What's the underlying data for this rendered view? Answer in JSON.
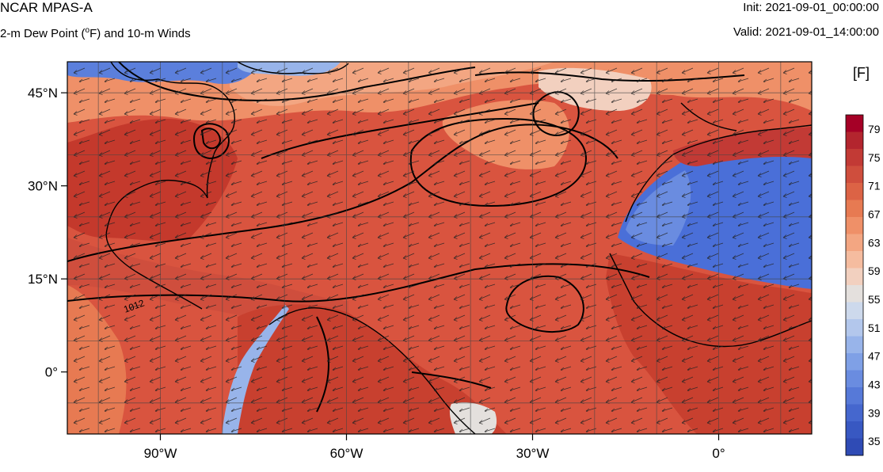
{
  "header": {
    "model": "NCAR MPAS-A",
    "field_prefix": "2-m Dew Point (",
    "field_unit_sup": "o",
    "field_suffix": "F) and 10-m Winds",
    "init": "Init: 2021-09-01_00:00:00",
    "valid": "Valid: 2021-09-01_14:00:00"
  },
  "map": {
    "projection": "cylindrical equidistant",
    "lon_range": [
      -105,
      15
    ],
    "lat_range": [
      -10,
      50
    ],
    "lon_ticks": [
      {
        "value": -90,
        "label": "90°W"
      },
      {
        "value": -60,
        "label": "60°W"
      },
      {
        "value": -30,
        "label": "30°W"
      },
      {
        "value": 0,
        "label": "0°"
      }
    ],
    "lat_ticks": [
      {
        "value": 45,
        "label": "45°N"
      },
      {
        "value": 30,
        "label": "30°N"
      },
      {
        "value": 15,
        "label": "15°N"
      },
      {
        "value": 0,
        "label": "0°"
      }
    ],
    "gridlines": true,
    "isobar_label": "1012"
  },
  "colorbar": {
    "unit_label": "[F]",
    "labels": [
      "79",
      "75",
      "71",
      "67",
      "63",
      "59",
      "55",
      "51",
      "47",
      "43",
      "39",
      "35"
    ],
    "colors": [
      "#a50026",
      "#b3252e",
      "#c23a35",
      "#cf4e3d",
      "#dc6345",
      "#e77a52",
      "#ef9068",
      "#f3a682",
      "#f5bc9f",
      "#f2d0bf",
      "#e4e0dd",
      "#cdd9ec",
      "#b3c7ec",
      "#98b4ea",
      "#7fa0e6",
      "#6a8ce0",
      "#5679d8",
      "#4567ce",
      "#3858c2",
      "#2f4bb5"
    ]
  },
  "palette": {
    "ocean_main": "#d9543f",
    "land_warm": "#c8402f",
    "cool_land": "#4a6fd8",
    "pale": "#e6c5b5"
  }
}
